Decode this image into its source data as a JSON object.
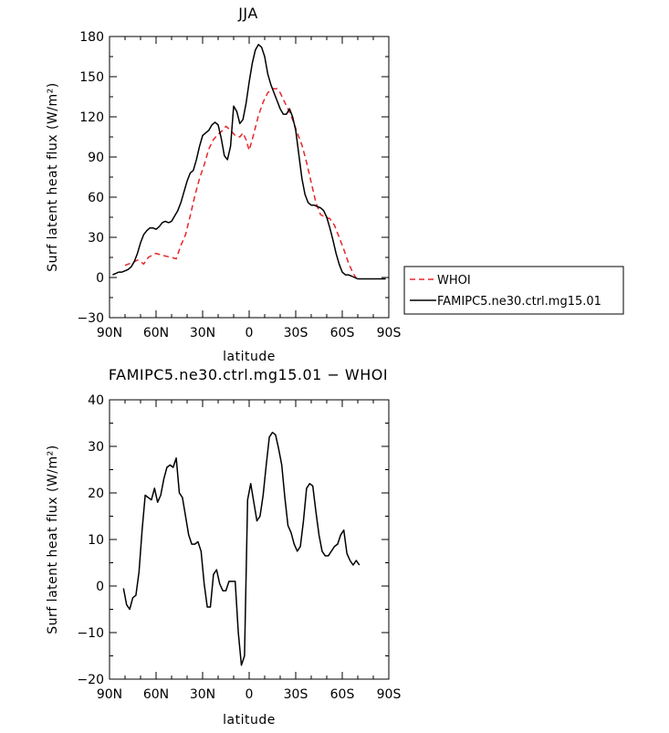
{
  "chart_data": [
    {
      "type": "line",
      "title": "JJA",
      "xlabel": "latitude",
      "ylabel": "Surf latent heat flux (W/m²)",
      "xlim": [
        90,
        -90
      ],
      "ylim": [
        -30,
        180
      ],
      "x_ticks": [
        90,
        60,
        30,
        0,
        -30,
        -60,
        -90
      ],
      "x_tick_labels": [
        "90N",
        "60N",
        "30N",
        "0",
        "30S",
        "60S",
        "90S"
      ],
      "y_ticks": [
        -30,
        0,
        30,
        60,
        90,
        120,
        150,
        180
      ],
      "y_tick_labels": [
        "−30",
        "0",
        "30",
        "60",
        "90",
        "120",
        "150",
        "180"
      ],
      "legend": {
        "placement": "right",
        "entries": [
          "WHOI",
          "FAMIPC5.ne30.ctrl.mg15.01"
        ]
      },
      "series": [
        {
          "name": "WHOI",
          "color": "#e8262a",
          "style": "dashed",
          "x": [
            80,
            78,
            75,
            72,
            70,
            68,
            65,
            62,
            60,
            57,
            54,
            50,
            47,
            44,
            41,
            38,
            35,
            32,
            29,
            26,
            23,
            20,
            17,
            15,
            12,
            9,
            6,
            4,
            2,
            0,
            -2,
            -4,
            -6,
            -9,
            -12,
            -15,
            -18,
            -20,
            -22,
            -25,
            -28,
            -31,
            -34,
            -37,
            -40,
            -43,
            -46,
            -49,
            -52,
            -55,
            -58,
            -61,
            -64,
            -67,
            -70
          ],
          "values": [
            9,
            10,
            11,
            13,
            12,
            10,
            15,
            17,
            18,
            17,
            16,
            15,
            14,
            24,
            32,
            46,
            61,
            74,
            84,
            96,
            103,
            107,
            110,
            113,
            110,
            106,
            105,
            108,
            103,
            95,
            103,
            112,
            121,
            131,
            138,
            141,
            141,
            138,
            133,
            126,
            118,
            108,
            99,
            86,
            71,
            56,
            47,
            45,
            44,
            39,
            30,
            21,
            11,
            3,
            -2
          ]
        },
        {
          "name": "FAMIPC5.ne30.ctrl.mg15.01",
          "color": "#000000",
          "style": "solid",
          "x": [
            88,
            86,
            84,
            82,
            80,
            78,
            76,
            74,
            72,
            70,
            68,
            66,
            64,
            62,
            60,
            58,
            56,
            54,
            52,
            50,
            48,
            46,
            44,
            42,
            40,
            38,
            36,
            34,
            32,
            30,
            28,
            26,
            24,
            22,
            20,
            18,
            16,
            14,
            12,
            10,
            8,
            6,
            4,
            2,
            0,
            -2,
            -4,
            -6,
            -8,
            -10,
            -12,
            -14,
            -16,
            -18,
            -20,
            -22,
            -24,
            -26,
            -28,
            -30,
            -32,
            -34,
            -36,
            -38,
            -40,
            -42,
            -44,
            -46,
            -48,
            -50,
            -52,
            -54,
            -56,
            -58,
            -60,
            -62,
            -64,
            -66,
            -68,
            -70,
            -72,
            -74,
            -76,
            -78,
            -80,
            -82,
            -84,
            -86,
            -88
          ],
          "values": [
            2,
            3,
            4,
            4,
            5,
            6,
            8,
            12,
            18,
            26,
            32,
            35,
            37,
            37,
            36,
            38,
            41,
            42,
            41,
            42,
            46,
            50,
            56,
            64,
            72,
            78,
            80,
            88,
            98,
            106,
            108,
            110,
            114,
            116,
            114,
            104,
            91,
            88,
            98,
            128,
            124,
            115,
            118,
            130,
            146,
            160,
            170,
            174,
            172,
            165,
            152,
            144,
            138,
            132,
            126,
            122,
            122,
            126,
            120,
            110,
            92,
            74,
            62,
            56,
            54,
            54,
            53,
            52,
            50,
            45,
            37,
            28,
            18,
            10,
            4,
            2,
            2,
            1,
            0,
            -1,
            -1,
            -1,
            -1,
            -1,
            -1,
            -1,
            -1,
            -1,
            -1
          ]
        }
      ]
    },
    {
      "type": "line",
      "title": "FAMIPC5.ne30.ctrl.mg15.01 − WHOI",
      "xlabel": "latitude",
      "ylabel": "Surf latent heat flux (W/m²)",
      "xlim": [
        90,
        -90
      ],
      "ylim": [
        -20,
        40
      ],
      "x_ticks": [
        90,
        60,
        30,
        0,
        -30,
        -60,
        -90
      ],
      "x_tick_labels": [
        "90N",
        "60N",
        "30N",
        "0",
        "30S",
        "60S",
        "90S"
      ],
      "y_ticks": [
        -20,
        -10,
        0,
        10,
        20,
        30,
        40
      ],
      "y_tick_labels": [
        "−20",
        "−10",
        "0",
        "10",
        "20",
        "30",
        "40"
      ],
      "series": [
        {
          "color": "#000000",
          "style": "solid",
          "x": [
            81,
            79,
            77,
            75,
            73,
            71,
            69,
            67,
            65,
            63,
            61,
            59,
            57,
            55,
            53,
            51,
            49,
            47,
            45,
            43,
            41,
            39,
            37,
            35,
            33,
            31,
            29,
            27,
            25,
            23,
            21,
            19,
            17,
            15,
            13,
            11,
            9,
            7,
            5,
            3,
            1,
            -1,
            -3,
            -5,
            -7,
            -9,
            -11,
            -13,
            -15,
            -17,
            -19,
            -21,
            -23,
            -25,
            -27,
            -29,
            -31,
            -33,
            -35,
            -37,
            -39,
            -41,
            -43,
            -45,
            -47,
            -49,
            -51,
            -53,
            -55,
            -57,
            -59,
            -61,
            -63,
            -65,
            -67,
            -69,
            -71
          ],
          "values": [
            -0.5,
            -4,
            -5,
            -2.5,
            -2,
            3,
            12,
            19.5,
            19,
            18.5,
            21,
            18,
            19.5,
            23,
            25.5,
            26,
            25.5,
            27.5,
            20,
            19,
            15,
            11,
            9,
            9,
            9.5,
            7.5,
            0.5,
            -4.5,
            -4.5,
            2.5,
            3.5,
            0.5,
            -1,
            -1,
            1,
            1,
            1,
            -10,
            -17,
            -15,
            18.5,
            22,
            18,
            14,
            15,
            19.5,
            26,
            32,
            33,
            32.5,
            29.5,
            26,
            19,
            13,
            11.5,
            9,
            7.5,
            8.5,
            14,
            21,
            22,
            21.5,
            16,
            11,
            7.5,
            6.5,
            6.5,
            7.5,
            8.5,
            9,
            11,
            12,
            7,
            5.5,
            4.5,
            5.5,
            4.5
          ]
        }
      ]
    }
  ]
}
